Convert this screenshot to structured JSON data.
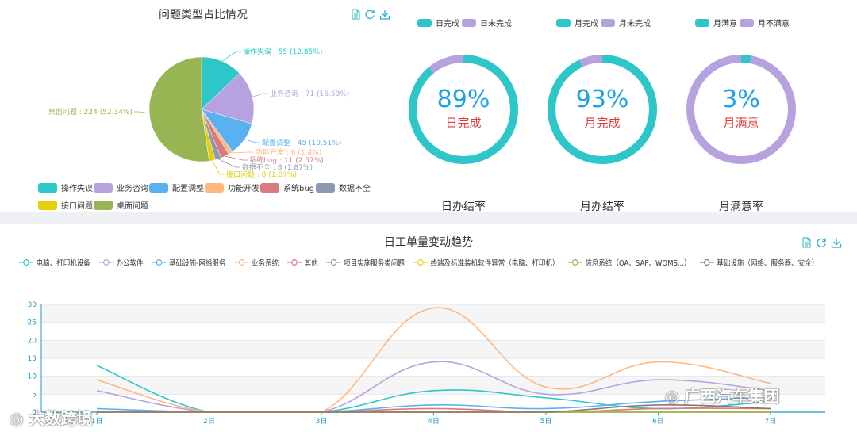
{
  "colors": {
    "teal": "#2ec7c9",
    "purple": "#b6a2de",
    "blue": "#5ab1ef",
    "orange": "#ffb980",
    "red": "#d87a80",
    "slate": "#8d98b3",
    "yellow": "#e5cf0d",
    "green": "#97b552",
    "brown": "#95706d",
    "pct_text": "#1ea2e6",
    "pct_sub": "#e03a3a",
    "tool": "#2ab0c5"
  },
  "icons": [
    "document-icon",
    "refresh-icon",
    "download-icon"
  ],
  "pie": {
    "title": "问题类型占比情况",
    "legend": [
      "操作失误",
      "业务咨询",
      "配置调整",
      "功能开发",
      "系统bug",
      "数据不全",
      "接口问题",
      "桌面问题"
    ]
  },
  "rings": [
    {
      "legend": [
        "日完成",
        "日未完成"
      ],
      "pct_text": "89%",
      "sub": "日完成",
      "label": "日办结率"
    },
    {
      "legend": [
        "月完成",
        "月未完成"
      ],
      "pct_text": "93%",
      "sub": "月完成",
      "label": "月办结率"
    },
    {
      "legend": [
        "月满意",
        "月不满意"
      ],
      "pct_text": "3%",
      "sub": "月满意",
      "label": "月满意率"
    }
  ],
  "line": {
    "title": "日工单量变动趋势",
    "legend": [
      "电脑、打印机设备",
      "办公软件",
      "基础设施-网络服务",
      "业务系统",
      "其他",
      "项目实施服务类问题",
      "终端及标准装机软件异常（电脑、打印机）",
      "信息系统（OA、SAP、WOMS...）",
      "基础设施（网络、服务器、安全）"
    ]
  },
  "watermarks": {
    "left": "大数跨境",
    "right": "广西汽车集团"
  },
  "chart_data": [
    {
      "type": "pie",
      "title": "问题类型占比情况",
      "slices": [
        {
          "name": "操作失误",
          "value": 55,
          "label": "操作失误 : 55 (12.85%)"
        },
        {
          "name": "业务咨询",
          "value": 71,
          "label": "业务咨询 : 71 (16.59%)"
        },
        {
          "name": "配置调整",
          "value": 45,
          "label": "配置调整 : 45 (10.51%)"
        },
        {
          "name": "功能开发",
          "value": 6,
          "label": "功能开发 : 6 (1.4%)"
        },
        {
          "name": "系统bug",
          "value": 11,
          "label": "系统bug : 11 (2.57%)"
        },
        {
          "name": "数据不全",
          "value": 8,
          "label": "数据不全 : 8 (1.87%)"
        },
        {
          "name": "接口问题",
          "value": 8,
          "label": "接口问题 : 8 (1.87%)"
        },
        {
          "name": "桌面问题",
          "value": 224,
          "label": "桌面问题 : 224 (52.34%)"
        }
      ],
      "legend_position": "bottom"
    },
    {
      "type": "pie",
      "subtype": "donut",
      "slices": [
        {
          "name": "日完成",
          "value": 89
        },
        {
          "name": "日未完成",
          "value": 11
        }
      ],
      "center_text": "89%",
      "label": "日办结率"
    },
    {
      "type": "pie",
      "subtype": "donut",
      "slices": [
        {
          "name": "月完成",
          "value": 93
        },
        {
          "name": "月未完成",
          "value": 7
        }
      ],
      "center_text": "93%",
      "label": "月办结率"
    },
    {
      "type": "pie",
      "subtype": "donut",
      "slices": [
        {
          "name": "月满意",
          "value": 3
        },
        {
          "name": "月不满意",
          "value": 97
        }
      ],
      "center_text": "3%",
      "label": "月满意率"
    },
    {
      "type": "line",
      "title": "日工单量变动趋势",
      "smooth": true,
      "categories": [
        "1日",
        "2日",
        "3日",
        "4日",
        "5日",
        "6日",
        "7日"
      ],
      "ylim": [
        0,
        30
      ],
      "yticks": [
        0,
        5,
        10,
        15,
        20,
        25,
        30
      ],
      "grid": true,
      "legend_position": "top",
      "series": [
        {
          "name": "电脑、打印机设备",
          "values": [
            13,
            0,
            0,
            6,
            4,
            1,
            3
          ]
        },
        {
          "name": "办公软件",
          "values": [
            6,
            0,
            0,
            14,
            5,
            9,
            6
          ]
        },
        {
          "name": "基础设施-网络服务",
          "values": [
            1,
            0,
            0,
            2,
            1,
            3,
            4
          ]
        },
        {
          "name": "业务系统",
          "values": [
            9,
            0,
            0,
            29,
            7,
            14,
            8
          ]
        },
        {
          "name": "其他",
          "values": [
            0,
            0,
            0,
            1,
            0,
            1,
            1
          ]
        },
        {
          "name": "项目实施服务类问题",
          "values": [
            0,
            0,
            0,
            0,
            0,
            0,
            0
          ]
        },
        {
          "name": "终端及标准装机软件异常（电脑、打印机）",
          "values": [
            0,
            0,
            0,
            0,
            0,
            0,
            0
          ]
        },
        {
          "name": "信息系统（OA、SAP、WOMS...）",
          "values": [
            0,
            0,
            0,
            0,
            0,
            0,
            0
          ]
        },
        {
          "name": "基础设施（网络、服务器、安全）",
          "values": [
            0,
            0,
            0,
            0,
            0,
            2,
            1
          ]
        }
      ]
    }
  ]
}
